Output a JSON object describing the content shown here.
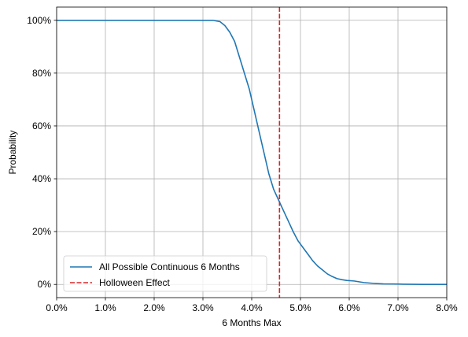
{
  "chart_data": {
    "type": "line",
    "title": "",
    "xlabel": "6 Months Max",
    "ylabel": "Probability",
    "xlim": [
      0.0,
      0.08
    ],
    "ylim": [
      -0.05,
      1.05
    ],
    "grid": true,
    "legend_position": "bottom-left",
    "x_ticks": [
      0.0,
      0.01,
      0.02,
      0.03,
      0.04,
      0.05,
      0.06,
      0.07,
      0.08
    ],
    "x_tick_labels": [
      "0.0%",
      "1.0%",
      "2.0%",
      "3.0%",
      "4.0%",
      "5.0%",
      "6.0%",
      "7.0%",
      "8.0%"
    ],
    "y_ticks": [
      0.0,
      0.2,
      0.4,
      0.6,
      0.8,
      1.0
    ],
    "y_tick_labels": [
      "0%",
      "20%",
      "40%",
      "60%",
      "80%",
      "100%"
    ],
    "series": [
      {
        "name": "All Possible Continuous 6 Months",
        "color": "#1f77b4",
        "style": "solid",
        "x": [
          0.0,
          0.01,
          0.02,
          0.03,
          0.032,
          0.0335,
          0.0345,
          0.0355,
          0.0365,
          0.0375,
          0.0385,
          0.0395,
          0.0405,
          0.0415,
          0.0425,
          0.0435,
          0.0445,
          0.0455,
          0.0465,
          0.0475,
          0.0485,
          0.0495,
          0.0505,
          0.0515,
          0.0525,
          0.0535,
          0.0545,
          0.0555,
          0.0565,
          0.0575,
          0.0585,
          0.0595,
          0.061,
          0.062,
          0.063,
          0.065,
          0.067,
          0.069,
          0.071,
          0.075,
          0.08
        ],
        "y": [
          1.0,
          1.0,
          1.0,
          1.0,
          1.0,
          0.995,
          0.98,
          0.955,
          0.92,
          0.86,
          0.8,
          0.74,
          0.66,
          0.58,
          0.5,
          0.42,
          0.36,
          0.32,
          0.28,
          0.24,
          0.2,
          0.165,
          0.14,
          0.115,
          0.09,
          0.07,
          0.055,
          0.04,
          0.03,
          0.022,
          0.018,
          0.015,
          0.013,
          0.01,
          0.007,
          0.004,
          0.002,
          0.0015,
          0.001,
          0.0,
          0.0
        ]
      },
      {
        "name": "Holloween Effect",
        "color": "#d62728",
        "style": "dashed",
        "vertical_line_x": 0.0457
      }
    ]
  }
}
